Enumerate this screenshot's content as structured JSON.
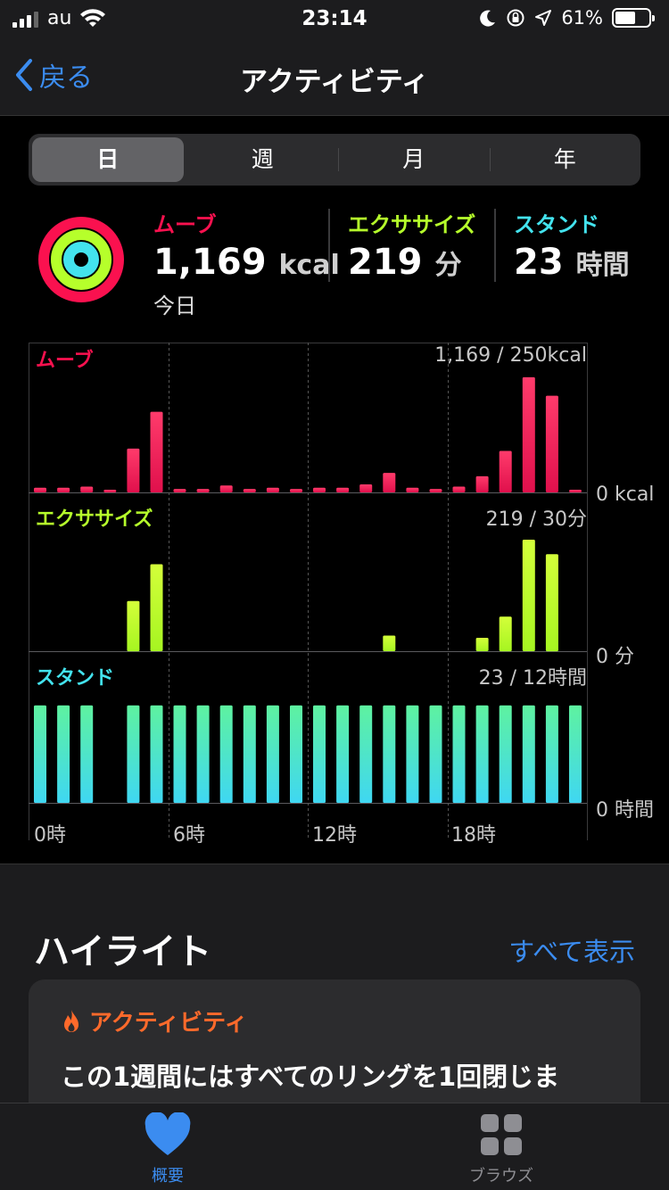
{
  "status_bar": {
    "carrier": "au",
    "time": "23:14",
    "battery": "61%",
    "battery_level": 0.61
  },
  "nav": {
    "back_label": "戻る",
    "title": "アクティビティ"
  },
  "segments": [
    {
      "label": "日",
      "active": true
    },
    {
      "label": "週",
      "active": false
    },
    {
      "label": "月",
      "active": false
    },
    {
      "label": "年",
      "active": false
    }
  ],
  "summary": {
    "move": {
      "label": "ムーブ",
      "value": "1,169",
      "unit": "kcal",
      "sub": "今日"
    },
    "exercise": {
      "label": "エクササイズ",
      "value": "219",
      "unit": "分"
    },
    "stand": {
      "label": "スタンド",
      "value": "23",
      "unit": "時間"
    }
  },
  "colors": {
    "move": "#fa114f",
    "exercise": "#b6ff2b",
    "stand": "#43e3ee",
    "link": "#3b8cf0",
    "flame": "#ff6a2b"
  },
  "chart_data": [
    {
      "type": "bar",
      "title": "ムーブ",
      "ratio": "1,169 / 250kcal",
      "axis_label": "0 kcal",
      "x": [
        0,
        1,
        2,
        3,
        4,
        5,
        6,
        7,
        8,
        9,
        10,
        11,
        12,
        13,
        14,
        15,
        16,
        17,
        18,
        19,
        20,
        21,
        22,
        23
      ],
      "values": [
        4,
        4,
        5,
        1,
        38,
        70,
        3,
        3,
        6,
        3,
        4,
        3,
        4,
        4,
        7,
        17,
        4,
        3,
        5,
        14,
        36,
        100,
        84,
        1
      ],
      "ylim": [
        0,
        110
      ]
    },
    {
      "type": "bar",
      "title": "エクササイズ",
      "ratio": "219 / 30分",
      "axis_label": "0 分",
      "x": [
        0,
        1,
        2,
        3,
        4,
        5,
        6,
        7,
        8,
        9,
        10,
        11,
        12,
        13,
        14,
        15,
        16,
        17,
        18,
        19,
        20,
        21,
        22,
        23
      ],
      "values": [
        0,
        0,
        0,
        0,
        45,
        78,
        0,
        0,
        0,
        0,
        0,
        0,
        0,
        0,
        0,
        14,
        0,
        0,
        0,
        12,
        31,
        100,
        87,
        0
      ],
      "ylim": [
        0,
        120
      ]
    },
    {
      "type": "bar",
      "title": "スタンド",
      "ratio": "23 / 12時間",
      "axis_label": "0 時間",
      "x": [
        0,
        1,
        2,
        3,
        4,
        5,
        6,
        7,
        8,
        9,
        10,
        11,
        12,
        13,
        14,
        15,
        16,
        17,
        18,
        19,
        20,
        21,
        22,
        23
      ],
      "values": [
        1,
        1,
        1,
        0,
        1,
        1,
        1,
        1,
        1,
        1,
        1,
        1,
        1,
        1,
        1,
        1,
        1,
        1,
        1,
        1,
        1,
        1,
        1,
        1
      ],
      "ylim": [
        0,
        1.3
      ]
    }
  ],
  "x_tick_labels": [
    "0時",
    "6時",
    "12時",
    "18時"
  ],
  "highlights": {
    "title": "ハイライト",
    "see_all": "すべて表示",
    "card_title": "アクティビティ",
    "card_text": "この1週間にはすべてのリングを1回閉じま"
  },
  "tabbar": [
    {
      "label": "概要",
      "icon": "heart-icon",
      "active": true
    },
    {
      "label": "ブラウズ",
      "icon": "grid-icon",
      "active": false
    }
  ]
}
